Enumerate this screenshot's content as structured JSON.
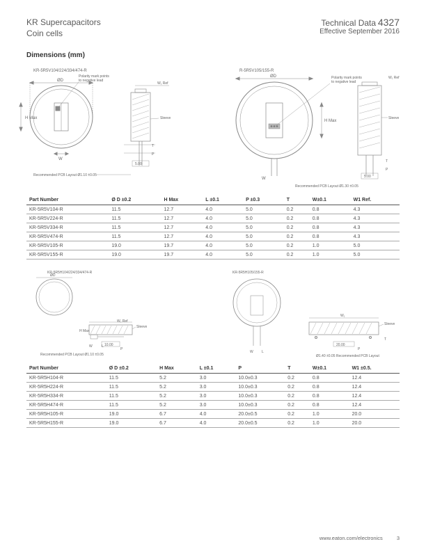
{
  "header": {
    "line1": "KR Supercapacitors",
    "line2": "Coin cells",
    "techdata_label": "Technical Data",
    "techdata_num": "4327",
    "effective": "Effective September 2016"
  },
  "section_title": "Dimensions (mm)",
  "diagram_labels": {
    "top_left_title": "KR-5R5V104/224/334/474-R",
    "top_right_title": "R-5R5V105/155-R",
    "polarity": "Polarity mark points\nto negative lead",
    "sleeve": "Sleeve",
    "hmax": "H Max",
    "w": "W",
    "l": "L",
    "t": "T",
    "p": "P",
    "d": "ØD",
    "w1ref": "W₁ Ref",
    "dim5": "5.00",
    "pcb_left": "Recommended PCB Layout   Ø1.10 ±0.05",
    "pcb_right": "Recommended PCB Layout   Ø1.30 ±0.05",
    "mid_left_title": "KR-5R5H104/224/334/474-R",
    "mid_right_title": "KR-5R5H105/155-R",
    "dim10": "10.00",
    "dim20": "20.00",
    "pcb_mid_left": "Recommended PCB Layout   Ø1.10 ±0.05",
    "pcb_mid_right": "Ø1.40 ±0.05   Recommended PCB Layout"
  },
  "table1": {
    "headers": [
      "Part Number",
      "Ø D ±0.2",
      "H Max",
      "L ±0.1",
      "P ±0.3",
      "T",
      "W±0.1",
      "W1 Ref."
    ],
    "rows": [
      [
        "KR-5R5V104-R",
        "11.5",
        "12.7",
        "4.0",
        "5.0",
        "0.2",
        "0.8",
        "4.3"
      ],
      [
        "KR-5R5V224-R",
        "11.5",
        "12.7",
        "4.0",
        "5.0",
        "0.2",
        "0.8",
        "4.3"
      ],
      [
        "KR-5R5V334-R",
        "11.5",
        "12.7",
        "4.0",
        "5.0",
        "0.2",
        "0.8",
        "4.3"
      ],
      [
        "KR-5R5V474-R",
        "11.5",
        "12.7",
        "4.0",
        "5.0",
        "0.2",
        "0.8",
        "4.3"
      ],
      [
        "KR-5R5V105-R",
        "19.0",
        "19.7",
        "4.0",
        "5.0",
        "0.2",
        "1.0",
        "5.0"
      ],
      [
        "KR-5R5V155-R",
        "19.0",
        "19.7",
        "4.0",
        "5.0",
        "0.2",
        "1.0",
        "5.0"
      ]
    ]
  },
  "table2": {
    "headers": [
      "Part Number",
      "Ø D ±0.2",
      "H Max",
      "L ±0.1",
      "P",
      "T",
      "W±0.1",
      "W1 ±0.5."
    ],
    "rows": [
      [
        "KR-5R5H104-R",
        "11.5",
        "5.2",
        "3.0",
        "10.0±0.3",
        "0.2",
        "0.8",
        "12.4"
      ],
      [
        "KR-5R5H224-R",
        "11.5",
        "5.2",
        "3.0",
        "10.0±0.3",
        "0.2",
        "0.8",
        "12.4"
      ],
      [
        "KR-5R5H334-R",
        "11.5",
        "5.2",
        "3.0",
        "10.0±0.3",
        "0.2",
        "0.8",
        "12.4"
      ],
      [
        "KR-5R5H474-R",
        "11.5",
        "5.2",
        "3.0",
        "10.0±0.3",
        "0.2",
        "0.8",
        "12.4"
      ],
      [
        "KR-5R5H105-R",
        "19.0",
        "6.7",
        "4.0",
        "20.0±0.5",
        "0.2",
        "1.0",
        "20.0"
      ],
      [
        "KR-5R5H155-R",
        "19.0",
        "6.7",
        "4.0",
        "20.0±0.5",
        "0.2",
        "1.0",
        "20.0"
      ]
    ]
  },
  "footer": {
    "url": "www.eaton.com/electronics",
    "page": "3"
  },
  "colors": {
    "stroke": "#888888",
    "hatch": "#9a9a9a",
    "text": "#555555"
  }
}
